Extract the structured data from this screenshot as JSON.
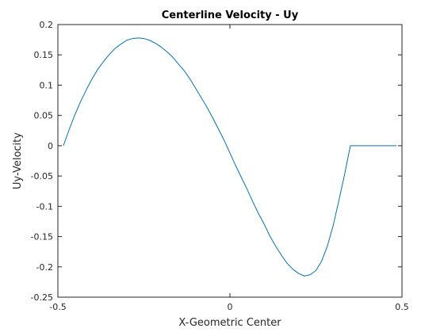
{
  "chart_data": {
    "type": "line",
    "title": "Centerline Velocity - Uy",
    "xlabel": "X-Geometric Center",
    "ylabel": "Uy-Velocity",
    "xlim": [
      -0.5,
      0.5
    ],
    "ylim": [
      -0.25,
      0.2
    ],
    "xticks": [
      -0.5,
      0,
      0.5
    ],
    "xtick_labels": [
      "-0.5",
      "0",
      "0.5"
    ],
    "yticks": [
      0.2,
      0.15,
      0.1,
      0.05,
      0,
      -0.05,
      -0.1,
      -0.15,
      -0.2,
      -0.25
    ],
    "ytick_labels": [
      "0.2",
      "0.15",
      "0.1",
      "0.05",
      "0",
      "-0.05",
      "-0.1",
      "-0.15",
      "-0.2",
      "-0.25"
    ],
    "grid": false,
    "series": [
      {
        "color": "#0072bd",
        "x": [
          -0.484,
          -0.467,
          -0.45,
          -0.433,
          -0.416,
          -0.4,
          -0.383,
          -0.366,
          -0.35,
          -0.333,
          -0.316,
          -0.3,
          -0.283,
          -0.266,
          -0.25,
          -0.233,
          -0.216,
          -0.2,
          -0.183,
          -0.166,
          -0.15,
          -0.133,
          -0.116,
          -0.1,
          -0.083,
          -0.066,
          -0.05,
          -0.033,
          -0.016,
          0,
          0.016,
          0.033,
          0.05,
          0.066,
          0.083,
          0.1,
          0.116,
          0.133,
          0.15,
          0.166,
          0.183,
          0.2,
          0.216,
          0.233,
          0.25,
          0.266,
          0.283,
          0.3,
          0.316,
          0.333,
          0.35,
          0.366,
          0.383,
          0.4,
          0.416,
          0.433,
          0.45,
          0.467,
          0.484
        ],
        "y": [
          0.0,
          0.027,
          0.052,
          0.074,
          0.094,
          0.111,
          0.127,
          0.14,
          0.151,
          0.161,
          0.168,
          0.174,
          0.177,
          0.178,
          0.177,
          0.174,
          0.169,
          0.163,
          0.155,
          0.146,
          0.135,
          0.124,
          0.11,
          0.095,
          0.079,
          0.063,
          0.046,
          0.027,
          0.008,
          -0.012,
          -0.032,
          -0.052,
          -0.072,
          -0.092,
          -0.112,
          -0.13,
          -0.149,
          -0.166,
          -0.181,
          -0.194,
          -0.204,
          -0.211,
          -0.215,
          -0.213,
          -0.206,
          -0.191,
          -0.166,
          -0.132,
          -0.092,
          -0.048,
          -0.0,
          0.0,
          0.0,
          0.0,
          0.0,
          0.0,
          0.0,
          0.0,
          0.0
        ]
      }
    ]
  }
}
